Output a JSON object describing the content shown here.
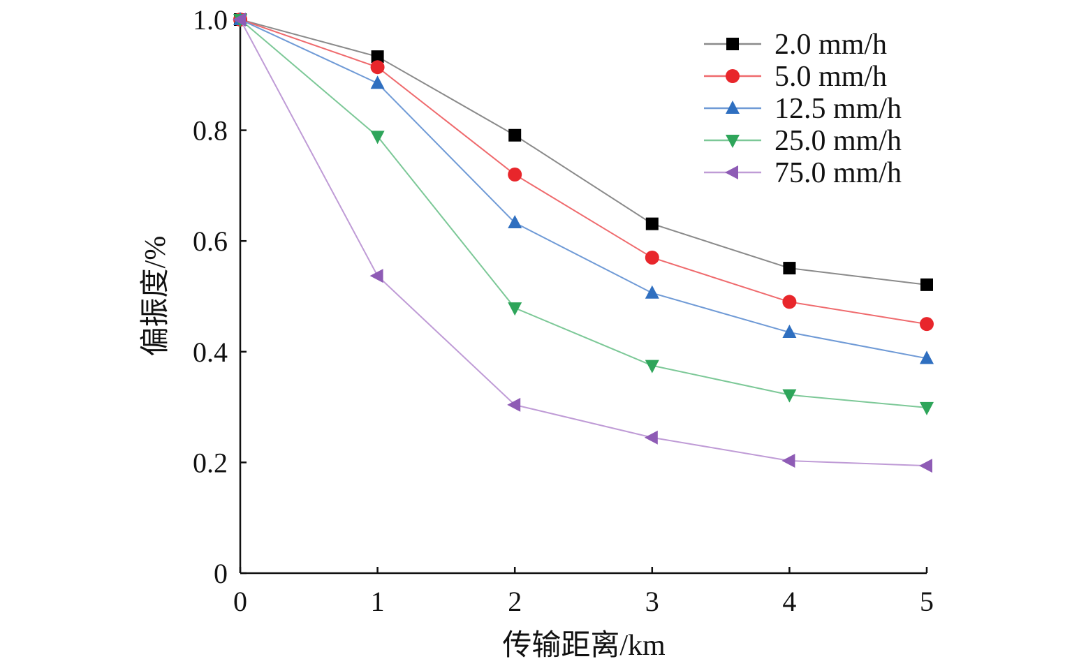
{
  "chart_data": {
    "type": "line",
    "title": "",
    "xlabel": "传输距离/km",
    "ylabel": "偏振度/%",
    "xlim": [
      0,
      5
    ],
    "ylim": [
      0,
      1.0
    ],
    "x": [
      0,
      1,
      2,
      3,
      4,
      5
    ],
    "xticks": [
      "0",
      "1",
      "2",
      "3",
      "4",
      "5"
    ],
    "yticks": [
      0,
      0.2,
      0.4,
      0.6,
      0.8,
      1.0
    ],
    "yticklabels": [
      "0",
      "0.2",
      "0.4",
      "0.6",
      "0.8",
      "1.0"
    ],
    "grid": false,
    "legend_position": "top-right",
    "series": [
      {
        "name": "2.0 mm/h",
        "marker": "square",
        "color": "#000000",
        "line_color": "#8a8a8a",
        "values": [
          1.0,
          0.933,
          0.791,
          0.631,
          0.551,
          0.521
        ]
      },
      {
        "name": "5.0 mm/h",
        "marker": "circle",
        "color": "#e8262b",
        "line_color": "#ef6a6d",
        "values": [
          1.0,
          0.914,
          0.72,
          0.57,
          0.49,
          0.45
        ]
      },
      {
        "name": "12.5 mm/h",
        "marker": "triangle-up",
        "color": "#2f6fc0",
        "line_color": "#6f9ad6",
        "values": [
          1.0,
          0.885,
          0.633,
          0.506,
          0.435,
          0.388
        ]
      },
      {
        "name": "25.0 mm/h",
        "marker": "triangle-down",
        "color": "#2ea55a",
        "line_color": "#7cc897",
        "values": [
          1.0,
          0.789,
          0.479,
          0.375,
          0.322,
          0.299
        ]
      },
      {
        "name": "75.0 mm/h",
        "marker": "triangle-left",
        "color": "#8e5bb5",
        "line_color": "#bf9bd6",
        "values": [
          1.0,
          0.537,
          0.304,
          0.245,
          0.203,
          0.194
        ]
      }
    ]
  }
}
